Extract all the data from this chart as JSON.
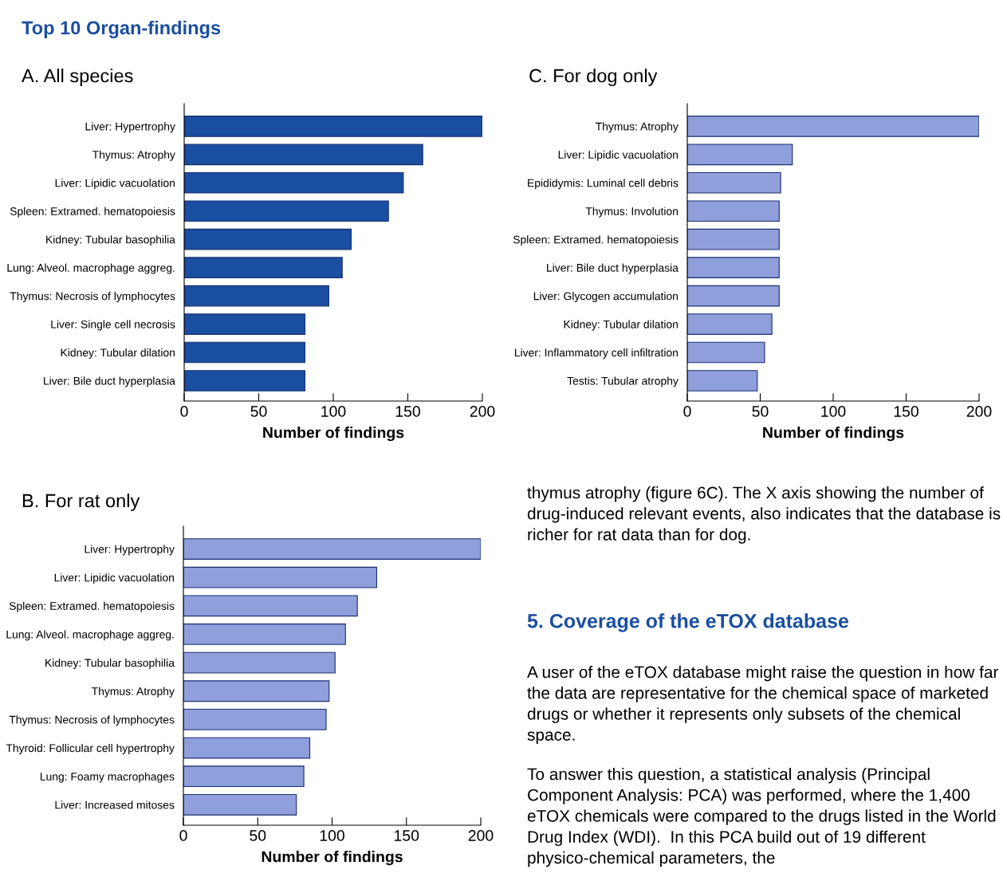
{
  "chart_data": [
    {
      "type": "bar",
      "orientation": "horizontal",
      "title": "Top 10 Organ-findings",
      "subtitle": "A. All species",
      "xlabel": "Number of findings",
      "categories": [
        "Liver: Hypertrophy",
        "Thymus: Atrophy",
        "Liver: Lipidic vacuolation",
        "Spleen: Extramed. hematopoiesis",
        "Kidney: Tubular basophilia",
        "Lung: Alveol. macrophage aggreg.",
        "Thymus: Necrosis of lymphocytes",
        "Liver: Single cell necrosis",
        "Kidney: Tubular dilation",
        "Liver: Bile duct hyperplasia"
      ],
      "values": [
        200,
        160,
        147,
        137,
        112,
        106,
        97,
        81,
        81,
        81
      ],
      "color": "#1a4ea0",
      "xlim": [
        0,
        200
      ],
      "xticks": [
        0,
        50,
        100,
        150,
        200
      ],
      "grid": false,
      "legend": false
    },
    {
      "type": "bar",
      "orientation": "horizontal",
      "subtitle": "C. For dog only",
      "xlabel": "Number of findings",
      "categories": [
        "Thymus: Atrophy",
        "Liver: Lipidic vacuolation",
        "Epididymis: Luminal cell debris",
        "Thymus: Involution",
        "Spleen: Extramed. hematopoiesis",
        "Liver: Bile duct hyperplasia",
        "Liver: Glycogen accumulation",
        "Kidney: Tubular dilation",
        "Liver: Inflammatory cell infiltration",
        "Testis: Tubular atrophy"
      ],
      "values": [
        200,
        72,
        64,
        63,
        63,
        63,
        63,
        58,
        53,
        48
      ],
      "color": "#8f9fdc",
      "xlim": [
        0,
        200
      ],
      "xticks": [
        0,
        50,
        100,
        150,
        200
      ],
      "grid": false,
      "legend": false
    },
    {
      "type": "bar",
      "orientation": "horizontal",
      "subtitle": "B. For rat only",
      "xlabel": "Number of findings",
      "categories": [
        "Liver: Hypertrophy",
        "Liver: Lipidic vacuolation",
        "Spleen: Extramed. hematopoiesis",
        "Lung: Alveol. macrophage aggreg.",
        "Kidney: Tubular basophilia",
        "Thymus: Atrophy",
        "Thymus: Necrosis of lymphocytes",
        "Thyroid: Follicular cell hypertrophy",
        "Lung: Foamy macrophages",
        "Liver: Increased mitoses"
      ],
      "values": [
        200,
        130,
        117,
        109,
        102,
        98,
        96,
        85,
        81,
        76
      ],
      "color": "#8f9fdc",
      "xlim": [
        0,
        200
      ],
      "xticks": [
        0,
        50,
        100,
        150,
        200
      ],
      "grid": false,
      "legend": false
    },
    {
      "type": "other",
      "title": "5. Coverage of the eTOX database",
      "annotations": [
        "thymus atrophy (figure 6C). The X axis showing the number of drug-induced relevant events, also indicates that the database is richer for rat data than for dog.",
        "A user of the eTOX database might raise the question in how far the data are representative for the chemical space of marketed drugs or whether it represents only subsets of the chemical space.",
        "To answer this question, a statistical analysis (Principal Component Analysis: PCA) was performed, where the 1,400 eTOX chemicals were compared to the drugs listed in the World Drug Index (WDI).  In this PCA build out of 19 different physico-chemical parameters, the"
      ]
    }
  ]
}
